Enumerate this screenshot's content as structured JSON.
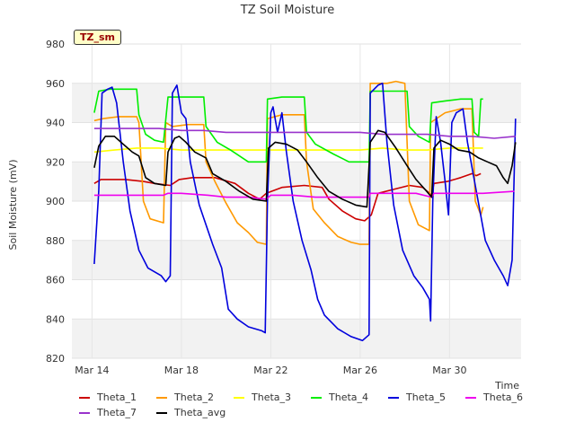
{
  "chart_data": {
    "type": "line",
    "title": "TZ Soil Moisture",
    "xlabel": "Time",
    "ylabel": "Soil Moisture (mV)",
    "tag": "TZ_sm",
    "ylim": [
      820,
      980
    ],
    "xlim": [
      "Mar 13",
      "Mar 31"
    ],
    "x_ticks": [
      {
        "x": 14,
        "label": "Mar 14"
      },
      {
        "x": 18,
        "label": "Mar 18"
      },
      {
        "x": 22,
        "label": "Mar 22"
      },
      {
        "x": 26,
        "label": "Mar 26"
      },
      {
        "x": 30,
        "label": "Mar 30"
      }
    ],
    "y_ticks": [
      820,
      840,
      860,
      880,
      900,
      920,
      940,
      960,
      980
    ],
    "grid": true,
    "legend_position": "bottom",
    "series": [
      {
        "name": "Theta_1",
        "color": "#cc0000",
        "points": [
          [
            14.1,
            909
          ],
          [
            14.4,
            911
          ],
          [
            15.5,
            911
          ],
          [
            16.3,
            910
          ],
          [
            16.8,
            909
          ],
          [
            17.5,
            908
          ],
          [
            17.9,
            911
          ],
          [
            18.5,
            912
          ],
          [
            19.5,
            912
          ],
          [
            20.4,
            909
          ],
          [
            21,
            904
          ],
          [
            21.5,
            901
          ],
          [
            21.8,
            904
          ],
          [
            22.5,
            907
          ],
          [
            23.5,
            908
          ],
          [
            24.3,
            907
          ],
          [
            24.6,
            901
          ],
          [
            25.2,
            895
          ],
          [
            25.8,
            891
          ],
          [
            26.2,
            890
          ],
          [
            26.5,
            893
          ],
          [
            26.8,
            904
          ],
          [
            27.5,
            906
          ],
          [
            28.2,
            908
          ],
          [
            28.8,
            907
          ],
          [
            29.2,
            903
          ],
          [
            29.3,
            909
          ],
          [
            29.9,
            910
          ],
          [
            30.5,
            912
          ],
          [
            31,
            914
          ],
          [
            31.2,
            913
          ],
          [
            31.4,
            914
          ]
        ]
      },
      {
        "name": "Theta_2",
        "color": "#ff9900",
        "points": [
          [
            14.1,
            941
          ],
          [
            14.5,
            942
          ],
          [
            15.2,
            943
          ],
          [
            16,
            943
          ],
          [
            16.1,
            940
          ],
          [
            16.3,
            900
          ],
          [
            16.6,
            891
          ],
          [
            17.2,
            889
          ],
          [
            17.3,
            940
          ],
          [
            17.6,
            938
          ],
          [
            18.3,
            939
          ],
          [
            19,
            939
          ],
          [
            19.1,
            920
          ],
          [
            19.5,
            910
          ],
          [
            20,
            899
          ],
          [
            20.5,
            889
          ],
          [
            21,
            884
          ],
          [
            21.4,
            879
          ],
          [
            21.8,
            878
          ],
          [
            21.85,
            942
          ],
          [
            22.5,
            944
          ],
          [
            23.2,
            944
          ],
          [
            23.5,
            944
          ],
          [
            23.6,
            920
          ],
          [
            23.9,
            896
          ],
          [
            24.4,
            889
          ],
          [
            25,
            882
          ],
          [
            25.6,
            879
          ],
          [
            26,
            878
          ],
          [
            26.4,
            878
          ],
          [
            26.45,
            960
          ],
          [
            27.2,
            960
          ],
          [
            27.6,
            961
          ],
          [
            28,
            960
          ],
          [
            28.2,
            900
          ],
          [
            28.6,
            888
          ],
          [
            29.1,
            885
          ],
          [
            29.15,
            940
          ],
          [
            29.8,
            945
          ],
          [
            30.5,
            947
          ],
          [
            31,
            947
          ],
          [
            31.15,
            900
          ],
          [
            31.4,
            893
          ],
          [
            31.5,
            897
          ]
        ]
      },
      {
        "name": "Theta_3",
        "color": "#ffff00",
        "points": [
          [
            14.1,
            925
          ],
          [
            15,
            926
          ],
          [
            16,
            927
          ],
          [
            17,
            927
          ],
          [
            18,
            926
          ],
          [
            19,
            926
          ],
          [
            20,
            926
          ],
          [
            21,
            926
          ],
          [
            22,
            926
          ],
          [
            23,
            926
          ],
          [
            24,
            926
          ],
          [
            25,
            926
          ],
          [
            26,
            926
          ],
          [
            27,
            927
          ],
          [
            28,
            926
          ],
          [
            29,
            926
          ],
          [
            30,
            927
          ],
          [
            31,
            927
          ],
          [
            31.5,
            927
          ]
        ]
      },
      {
        "name": "Theta_4",
        "color": "#00ee00",
        "points": [
          [
            14.1,
            945
          ],
          [
            14.3,
            956
          ],
          [
            14.8,
            957
          ],
          [
            16,
            957
          ],
          [
            16.1,
            944
          ],
          [
            16.4,
            934
          ],
          [
            16.8,
            931
          ],
          [
            17.2,
            930
          ],
          [
            17.4,
            953
          ],
          [
            18,
            953
          ],
          [
            19,
            953
          ],
          [
            19.1,
            938
          ],
          [
            19.6,
            930
          ],
          [
            20.2,
            926
          ],
          [
            21,
            920
          ],
          [
            21.8,
            920
          ],
          [
            21.85,
            952
          ],
          [
            22.5,
            953
          ],
          [
            23.3,
            953
          ],
          [
            23.5,
            953
          ],
          [
            23.6,
            935
          ],
          [
            24,
            929
          ],
          [
            24.8,
            924
          ],
          [
            25.5,
            920
          ],
          [
            26.4,
            920
          ],
          [
            26.45,
            956
          ],
          [
            27,
            956
          ],
          [
            27.6,
            956
          ],
          [
            28.1,
            956
          ],
          [
            28.2,
            938
          ],
          [
            28.6,
            933
          ],
          [
            29.1,
            930
          ],
          [
            29.2,
            950
          ],
          [
            29.8,
            951
          ],
          [
            30.5,
            952
          ],
          [
            31,
            952
          ],
          [
            31.1,
            935
          ],
          [
            31.3,
            933
          ],
          [
            31.4,
            952
          ],
          [
            31.5,
            952
          ]
        ]
      },
      {
        "name": "Theta_5",
        "color": "#0000dd",
        "points": [
          [
            14.1,
            868
          ],
          [
            14.3,
            905
          ],
          [
            14.45,
            955
          ],
          [
            14.7,
            957
          ],
          [
            14.9,
            958
          ],
          [
            15.1,
            950
          ],
          [
            15.4,
            920
          ],
          [
            15.7,
            895
          ],
          [
            16.1,
            875
          ],
          [
            16.5,
            866
          ],
          [
            17.1,
            862
          ],
          [
            17.3,
            859
          ],
          [
            17.5,
            862
          ],
          [
            17.6,
            955
          ],
          [
            17.8,
            959
          ],
          [
            18.0,
            945
          ],
          [
            18.2,
            942
          ],
          [
            18.4,
            920
          ],
          [
            18.8,
            898
          ],
          [
            19.4,
            878
          ],
          [
            19.8,
            866
          ],
          [
            20.1,
            845
          ],
          [
            20.5,
            840
          ],
          [
            21,
            836
          ],
          [
            21.6,
            834
          ],
          [
            21.75,
            833
          ],
          [
            21.85,
            900
          ],
          [
            22,
            945
          ],
          [
            22.1,
            948
          ],
          [
            22.3,
            935
          ],
          [
            22.5,
            945
          ],
          [
            22.7,
            925
          ],
          [
            23,
            900
          ],
          [
            23.4,
            880
          ],
          [
            23.8,
            865
          ],
          [
            24.1,
            850
          ],
          [
            24.4,
            842
          ],
          [
            25,
            835
          ],
          [
            25.6,
            831
          ],
          [
            26.1,
            829
          ],
          [
            26.4,
            832
          ],
          [
            26.45,
            955
          ],
          [
            26.8,
            959
          ],
          [
            27,
            960
          ],
          [
            27.2,
            930
          ],
          [
            27.5,
            898
          ],
          [
            27.9,
            875
          ],
          [
            28.4,
            862
          ],
          [
            28.8,
            856
          ],
          [
            29.1,
            850
          ],
          [
            29.15,
            839
          ],
          [
            29.25,
            900
          ],
          [
            29.4,
            943
          ],
          [
            29.6,
            930
          ],
          [
            29.8,
            910
          ],
          [
            29.95,
            893
          ],
          [
            30.1,
            940
          ],
          [
            30.3,
            945
          ],
          [
            30.6,
            947
          ],
          [
            30.8,
            930
          ],
          [
            31.2,
            905
          ],
          [
            31.6,
            880
          ],
          [
            32,
            870
          ],
          [
            32.4,
            862
          ],
          [
            32.6,
            857
          ],
          [
            32.8,
            870
          ],
          [
            32.95,
            942
          ]
        ]
      },
      {
        "name": "Theta_6",
        "color": "#ee00ee",
        "points": [
          [
            14.1,
            903
          ],
          [
            15,
            903
          ],
          [
            16,
            903
          ],
          [
            17.2,
            903
          ],
          [
            17.4,
            904
          ],
          [
            18,
            904
          ],
          [
            19.2,
            903
          ],
          [
            20,
            902
          ],
          [
            21,
            902
          ],
          [
            21.8,
            901
          ],
          [
            22,
            903
          ],
          [
            23,
            903
          ],
          [
            24,
            902
          ],
          [
            25,
            902
          ],
          [
            26,
            902
          ],
          [
            26.4,
            902
          ],
          [
            26.45,
            904
          ],
          [
            27.5,
            904
          ],
          [
            28.5,
            904
          ],
          [
            29.2,
            902
          ],
          [
            29.3,
            904
          ],
          [
            30.5,
            904
          ],
          [
            31.5,
            904
          ],
          [
            32.9,
            905
          ]
        ]
      },
      {
        "name": "Theta_7",
        "color": "#9933cc",
        "points": [
          [
            14.1,
            937
          ],
          [
            15,
            937
          ],
          [
            16,
            937
          ],
          [
            17,
            937
          ],
          [
            18,
            936
          ],
          [
            19,
            936
          ],
          [
            20,
            935
          ],
          [
            21,
            935
          ],
          [
            22,
            935
          ],
          [
            23,
            935
          ],
          [
            24,
            935
          ],
          [
            25,
            935
          ],
          [
            26,
            935
          ],
          [
            27,
            934
          ],
          [
            28,
            934
          ],
          [
            29,
            934
          ],
          [
            30,
            933
          ],
          [
            31,
            933
          ],
          [
            32,
            932
          ],
          [
            32.95,
            933
          ]
        ]
      },
      {
        "name": "Theta_avg",
        "color": "#000000",
        "points": [
          [
            14.1,
            917
          ],
          [
            14.3,
            928
          ],
          [
            14.6,
            933
          ],
          [
            15,
            933
          ],
          [
            15.4,
            929
          ],
          [
            15.8,
            925
          ],
          [
            16.1,
            923
          ],
          [
            16.4,
            912
          ],
          [
            16.8,
            909
          ],
          [
            17.3,
            908
          ],
          [
            17.4,
            925
          ],
          [
            17.7,
            932
          ],
          [
            17.9,
            933
          ],
          [
            18.2,
            930
          ],
          [
            18.6,
            925
          ],
          [
            19.1,
            922
          ],
          [
            19.4,
            914
          ],
          [
            20,
            910
          ],
          [
            20.6,
            905
          ],
          [
            21.2,
            901
          ],
          [
            21.8,
            900
          ],
          [
            21.9,
            927
          ],
          [
            22.2,
            930
          ],
          [
            22.7,
            929
          ],
          [
            23.2,
            926
          ],
          [
            23.6,
            920
          ],
          [
            24.1,
            912
          ],
          [
            24.6,
            905
          ],
          [
            25.2,
            901
          ],
          [
            25.8,
            898
          ],
          [
            26.3,
            897
          ],
          [
            26.45,
            930
          ],
          [
            26.8,
            936
          ],
          [
            27.1,
            935
          ],
          [
            27.6,
            927
          ],
          [
            28.1,
            918
          ],
          [
            28.5,
            911
          ],
          [
            28.9,
            906
          ],
          [
            29.2,
            902
          ],
          [
            29.3,
            927
          ],
          [
            29.6,
            931
          ],
          [
            30,
            929
          ],
          [
            30.4,
            926
          ],
          [
            30.9,
            925
          ],
          [
            31.3,
            922
          ],
          [
            31.7,
            920
          ],
          [
            32.1,
            918
          ],
          [
            32.4,
            912
          ],
          [
            32.6,
            909
          ],
          [
            32.8,
            918
          ],
          [
            32.95,
            930
          ]
        ]
      }
    ]
  }
}
